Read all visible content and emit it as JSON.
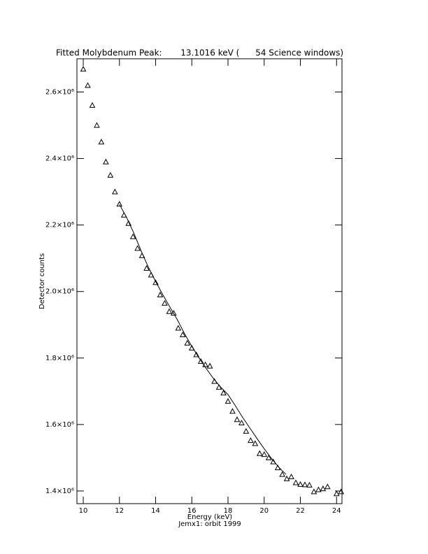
{
  "chart_data": {
    "type": "scatter",
    "title": "Fitted Molybdenum Peak:       13.1016 keV (      54 Science windows)",
    "xlabel": "Energy (keV)",
    "subtitle": "Jemx1: orbit 1999",
    "ylabel": "Detector counts",
    "xlim": [
      9.65,
      24.3
    ],
    "ylim": [
      1362000,
      2700000
    ],
    "xticks": [
      10,
      12,
      14,
      16,
      18,
      20,
      22,
      24
    ],
    "yticks": [
      {
        "value": 1400000,
        "label": "1.4×10⁶"
      },
      {
        "value": 1600000,
        "label": "1.6×10⁶"
      },
      {
        "value": 1800000,
        "label": "1.8×10⁶"
      },
      {
        "value": 2000000,
        "label": "2.0×10⁶"
      },
      {
        "value": 2200000,
        "label": "2.2×10⁶"
      },
      {
        "value": 2400000,
        "label": "2.4×10⁶"
      },
      {
        "value": 2600000,
        "label": "2.6×10⁶"
      }
    ],
    "series": [
      {
        "color": "#000000",
        "marker": "triangle",
        "x": [
          10,
          10.25,
          10.5,
          10.75,
          11,
          11.25,
          11.5,
          11.75,
          12,
          12.25,
          12.5,
          12.75,
          13,
          13.25,
          13.5,
          13.75,
          14,
          14.25,
          14.5,
          14.75,
          15,
          15.25,
          15.5,
          15.75,
          16,
          16.25,
          16.5,
          16.75,
          17,
          17.25,
          17.5,
          17.75,
          18,
          18.25,
          18.5,
          18.75,
          19,
          19.25,
          19.5,
          19.75,
          20,
          20.25,
          20.5,
          20.75,
          21,
          21.25,
          21.5,
          21.75,
          22,
          22.25,
          22.5,
          22.75,
          23,
          23.25,
          23.5,
          24,
          24.25
        ],
        "values": [
          2669000,
          2620000,
          2560000,
          2500000,
          2450000,
          2390000,
          2350000,
          2300000,
          2263000,
          2230000,
          2205000,
          2165000,
          2130000,
          2108000,
          2070000,
          2050000,
          2027000,
          1990000,
          1965000,
          1940000,
          1935000,
          1890000,
          1870000,
          1845000,
          1830000,
          1810000,
          1790000,
          1780000,
          1776000,
          1730000,
          1712000,
          1695000,
          1670000,
          1640000,
          1615000,
          1605000,
          1580000,
          1552000,
          1543000,
          1513000,
          1510000,
          1500000,
          1488000,
          1470000,
          1450000,
          1437000,
          1443000,
          1425000,
          1420000,
          1419000,
          1418000,
          1398000,
          1404000,
          1407000,
          1413000,
          1392000,
          1398000
        ]
      },
      {
        "color": "#000000",
        "marker": "line",
        "x": [
          12,
          12.4,
          12.8,
          13.2,
          13.6,
          14,
          14.4,
          14.8,
          15.2,
          15.6,
          16,
          16.4,
          16.8,
          17.2,
          17.6,
          18,
          18.4,
          18.8,
          19.2,
          19.6,
          20,
          20.4,
          20.8,
          21.2
        ],
        "values": [
          2262000,
          2222000,
          2175000,
          2122000,
          2073000,
          2030000,
          1990000,
          1952000,
          1915000,
          1873000,
          1835000,
          1800000,
          1768000,
          1738000,
          1712000,
          1690000,
          1657000,
          1622000,
          1590000,
          1558000,
          1527000,
          1498000,
          1472000,
          1450000
        ]
      }
    ]
  }
}
